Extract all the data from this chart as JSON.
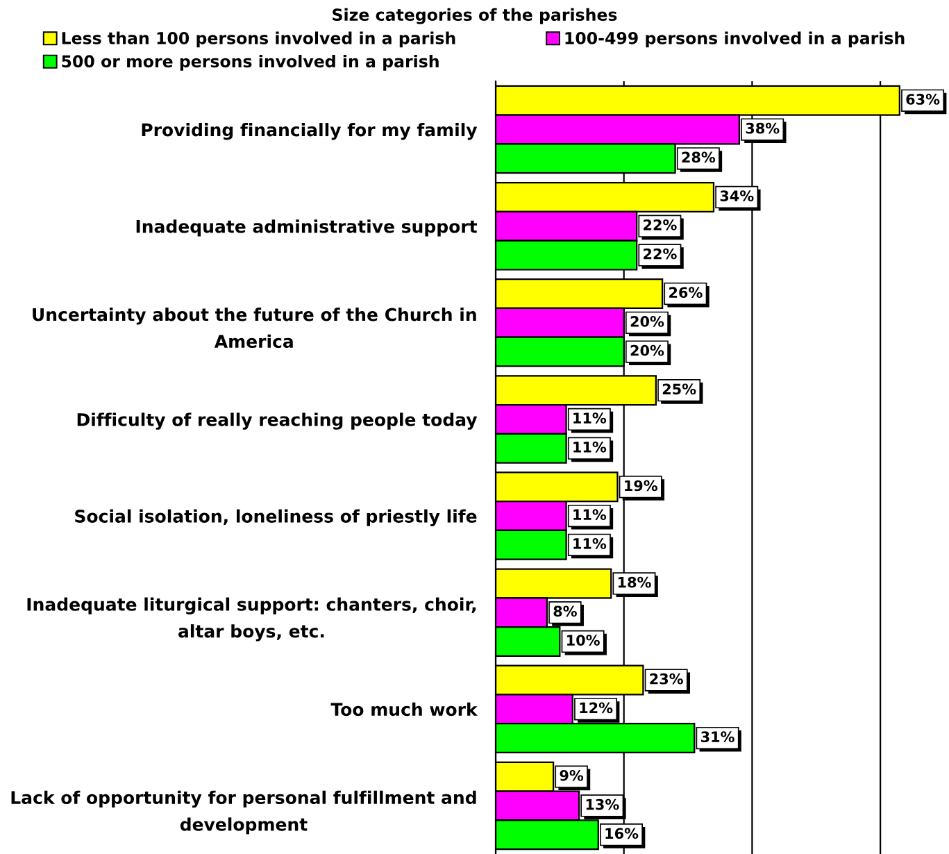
{
  "chart_data": {
    "type": "bar",
    "orientation": "horizontal",
    "legend_title": "Size categories of the parishes",
    "categories": [
      "Providing financially for my family",
      "Inadequate administrative support",
      "Uncertainty about the future of the Church in America",
      "Difficulty of really reaching people today",
      "Social isolation, loneliness of priestly life",
      "Inadequate liturgical support: chanters, choir, altar boys, etc.",
      "Too much work",
      "Lack of opportunity for personal fulfillment and development"
    ],
    "series": [
      {
        "name": "Less than 100 persons involved in a parish",
        "color": "#ffff00",
        "values": [
          63,
          34,
          26,
          25,
          19,
          18,
          23,
          9
        ],
        "value_labels": [
          "63%",
          "34%",
          "26%",
          "25%",
          "19%",
          "18%",
          "23%",
          "9%"
        ]
      },
      {
        "name": "100-499 persons involved in a parish",
        "color": "#ff00ff",
        "values": [
          38,
          22,
          20,
          11,
          11,
          8,
          12,
          13
        ],
        "value_labels": [
          "38%",
          "22%",
          "20%",
          "11%",
          "11%",
          "8%",
          "12%",
          "13%"
        ]
      },
      {
        "name": "500 or more persons involved in a parish",
        "color": "#00ff00",
        "values": [
          28,
          22,
          20,
          11,
          11,
          10,
          31,
          16
        ],
        "value_labels": [
          "28%",
          "22%",
          "20%",
          "11%",
          "11%",
          "10%",
          "31%",
          "16%"
        ]
      }
    ],
    "xticks": [
      {
        "value": 0,
        "label": null
      },
      {
        "value": 20,
        "label": null
      },
      {
        "value": 40,
        "label": null
      },
      {
        "value": 60,
        "label": null
      }
    ],
    "grid": "x",
    "legend": "top",
    "tick_labels": "y"
  }
}
